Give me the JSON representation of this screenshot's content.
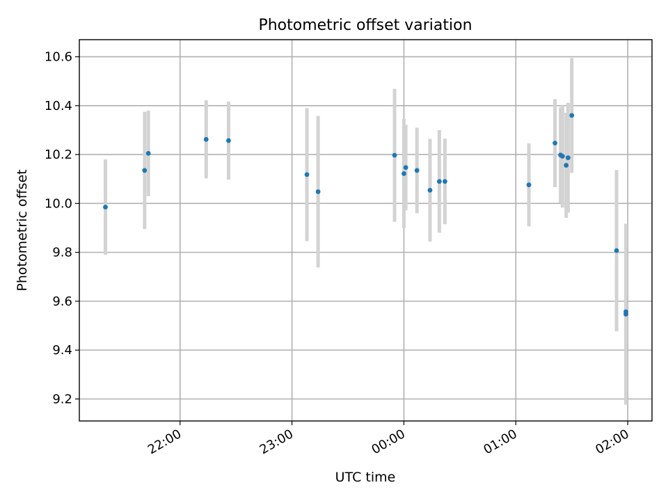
{
  "chart_data": {
    "type": "scatter",
    "title": "Photometric offset variation",
    "xlabel": "UTC time",
    "ylabel": "Photometric offset",
    "x_axis_type": "time",
    "x_ticks": [
      "22:00",
      "23:00",
      "00:00",
      "01:00",
      "02:00"
    ],
    "xlim": [
      "21:06",
      "02:13"
    ],
    "y_ticks": [
      "9.2",
      "9.4",
      "9.6",
      "9.8",
      "10.0",
      "10.2",
      "10.4",
      "10.6"
    ],
    "ylim": [
      9.11,
      10.67
    ],
    "grid": true,
    "legend": "none",
    "colors": {
      "points": "#1f77b4",
      "errorbars": "#d3d3d3",
      "grid": "#b0b0b0"
    },
    "series": [
      {
        "points": [
          {
            "x": "21:20",
            "y": 9.985,
            "err": 0.195
          },
          {
            "x": "21:41",
            "y": 10.135,
            "err": 0.24
          },
          {
            "x": "21:43",
            "y": 10.205,
            "err": 0.175
          },
          {
            "x": "22:14",
            "y": 10.262,
            "err": 0.16
          },
          {
            "x": "22:26",
            "y": 10.257,
            "err": 0.16
          },
          {
            "x": "23:08",
            "y": 10.118,
            "err": 0.272
          },
          {
            "x": "23:14",
            "y": 10.048,
            "err": 0.31
          },
          {
            "x": "23:55",
            "y": 10.197,
            "err": 0.272
          },
          {
            "x": "00:00",
            "y": 10.122,
            "err": 0.223
          },
          {
            "x": "00:01",
            "y": 10.147,
            "err": 0.175
          },
          {
            "x": "00:07",
            "y": 10.135,
            "err": 0.175
          },
          {
            "x": "00:14",
            "y": 10.054,
            "err": 0.21
          },
          {
            "x": "00:19",
            "y": 10.09,
            "err": 0.21
          },
          {
            "x": "00:22",
            "y": 10.09,
            "err": 0.175
          },
          {
            "x": "01:07",
            "y": 10.076,
            "err": 0.17
          },
          {
            "x": "01:21",
            "y": 10.247,
            "err": 0.18
          },
          {
            "x": "01:24",
            "y": 10.198,
            "err": 0.195
          },
          {
            "x": "01:25",
            "y": 10.193,
            "err": 0.21
          },
          {
            "x": "01:27",
            "y": 10.156,
            "err": 0.215
          },
          {
            "x": "01:28",
            "y": 10.187,
            "err": 0.225
          },
          {
            "x": "01:30",
            "y": 10.36,
            "err": 0.235
          },
          {
            "x": "01:54",
            "y": 9.807,
            "err": 0.33
          },
          {
            "x": "01:59",
            "y": 9.557,
            "err": 0.34
          },
          {
            "x": "01:59",
            "y": 9.547,
            "err": 0.37
          }
        ]
      }
    ]
  }
}
